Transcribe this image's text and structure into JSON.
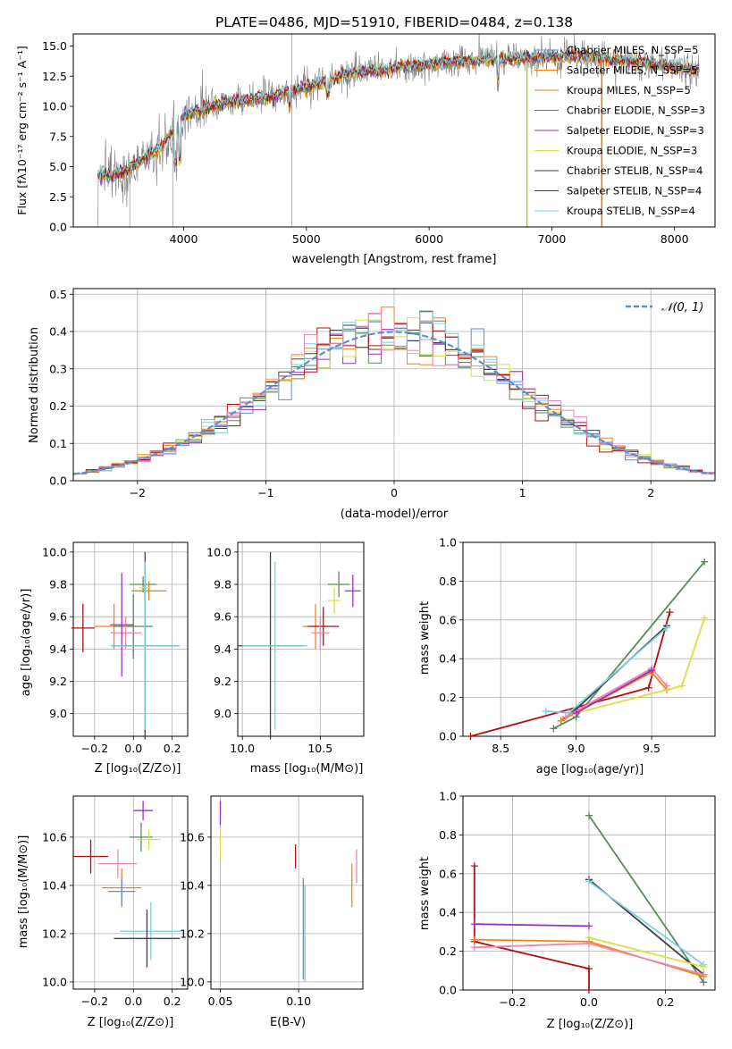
{
  "chart_data": [
    {
      "type": "line",
      "title": "PLATE=0486, MJD=51910, FIBERID=0484, z=0.138",
      "xlabel": "wavelength [Angstrom, rest frame]",
      "ylabel": "Flux [fλ10⁻¹⁷ erg cm⁻² s⁻¹ A⁻¹]",
      "xlim": [
        3100,
        8330
      ],
      "ylim": [
        0,
        16
      ],
      "xticks": [
        4000,
        5000,
        6000,
        7000,
        8000
      ],
      "yticks": [
        0.0,
        2.5,
        5.0,
        7.5,
        10.0,
        12.5,
        15.0
      ],
      "legend_position": "upper-right",
      "series": [
        {
          "name": "Chabrier MILES, N_SSP=5",
          "color": "#5b8fd1"
        },
        {
          "name": "Salpeter MILES, N_SSP=5",
          "color": "#ff7f0e"
        },
        {
          "name": "Kroupa MILES, N_SSP=5",
          "color": "#d9821a"
        },
        {
          "name": "Chabrier ELODIE, N_SSP=3",
          "color": "#5a8a5a"
        },
        {
          "name": "Salpeter ELODIE, N_SSP=3",
          "color": "#9b30c0"
        },
        {
          "name": "Kroupa ELODIE, N_SSP=3",
          "color": "#d8e040"
        },
        {
          "name": "Chabrier STELIB, N_SSP=4",
          "color": "#404040"
        },
        {
          "name": "Salpeter STELIB, N_SSP=4",
          "color": "#b01010"
        },
        {
          "name": "Kroupa STELIB, N_SSP=4",
          "color": "#7ed0e0"
        }
      ],
      "data_spectrum": {
        "name": "data",
        "color": "#7f7f7f"
      },
      "continuum": {
        "x": [
          3300,
          3500,
          3800,
          4000,
          4300,
          4700,
          5000,
          5300,
          5600,
          6000,
          6400,
          6800,
          7200,
          7600,
          8000,
          8200
        ],
        "y": [
          4.2,
          4.5,
          6.5,
          9.2,
          10.2,
          10.8,
          11.6,
          12.6,
          13.0,
          13.5,
          13.8,
          14.0,
          14.2,
          13.8,
          13.3,
          13.0
        ]
      }
    },
    {
      "type": "step",
      "xlabel": "(data-model)/error",
      "ylabel": "Normed distribution",
      "xlim": [
        -2.5,
        2.5
      ],
      "ylim": [
        0,
        0.515
      ],
      "xticks": [
        -2,
        -1,
        0,
        1,
        2
      ],
      "yticks": [
        0.0,
        0.1,
        0.2,
        0.3,
        0.4,
        0.5
      ],
      "grid": true,
      "legend": {
        "label": "𝒩(0, 1)",
        "position": "upper-right",
        "style": "dashed",
        "color": "#5b8fd1"
      },
      "bin_width": 0.1
    },
    {
      "type": "errorbar",
      "xlabel": "Z [log₁₀(Z/Z⊙)]",
      "ylabel": "age  [log₁₀(age/yr)]",
      "xlim": [
        -0.31,
        0.28
      ],
      "ylim": [
        8.86,
        10.06
      ],
      "xticks": [
        "−0.2",
        "0.0",
        "0.2"
      ],
      "xtick_values": [
        -0.2,
        0.0,
        0.2
      ],
      "yticks": [
        "9.0",
        "9.2",
        "9.4",
        "9.6",
        "9.8",
        "10.0"
      ],
      "ytick_values": [
        9.0,
        9.2,
        9.4,
        9.6,
        9.8,
        10.0
      ],
      "points": [
        {
          "x": -0.26,
          "xerr": 0.06,
          "y": 9.53,
          "yerr": 0.15,
          "color": "#b01010"
        },
        {
          "x": -0.1,
          "xerr": 0.1,
          "y": 9.54,
          "yerr": 0.14,
          "color": "#ff7f0e"
        },
        {
          "x": 0.0,
          "xerr": 0.1,
          "y": 9.54,
          "yerr": 0.2,
          "color": "#5a8a5a"
        },
        {
          "x": -0.04,
          "xerr": 0.08,
          "y": 9.5,
          "yerr": 0.1,
          "color": "#e88ab0"
        },
        {
          "x": -0.06,
          "xerr": 0.06,
          "y": 9.55,
          "yerr": 0.32,
          "color": "#9b30c0"
        },
        {
          "x": 0.05,
          "xerr": 0.07,
          "y": 9.8,
          "yerr": 0.05,
          "color": "#5a8a5a"
        },
        {
          "x": 0.08,
          "xerr": 0.09,
          "y": 9.76,
          "yerr": 0.06,
          "color": "#d9821a"
        },
        {
          "x": 0.06,
          "xerr": 0.03,
          "y": 9.78,
          "yerr": 0.12,
          "color": "#d8e040"
        },
        {
          "x": 0.06,
          "xerr": 0.17,
          "y": 9.42,
          "yerr": 0.58,
          "color": "#404040"
        },
        {
          "x": 0.06,
          "xerr": 0.18,
          "y": 9.42,
          "yerr": 0.52,
          "color": "#7ed0e0"
        }
      ]
    },
    {
      "type": "errorbar",
      "xlabel": "mass [log₁₀(M/M⊙)]",
      "xlim": [
        9.97,
        10.78
      ],
      "ylim": [
        8.86,
        10.06
      ],
      "xticks": [
        "10.0",
        "10.5"
      ],
      "xtick_values": [
        10.0,
        10.5
      ],
      "yticks": [
        "9.0",
        "9.2",
        "9.4",
        "9.6",
        "9.8",
        "10.0"
      ],
      "ytick_values": [
        9.0,
        9.2,
        9.4,
        9.6,
        9.8,
        10.0
      ],
      "points": [
        {
          "x": 10.18,
          "xerr": 0.21,
          "y": 9.42,
          "yerr": 0.58,
          "color": "#404040"
        },
        {
          "x": 10.21,
          "xerr": 0.21,
          "y": 9.42,
          "yerr": 0.52,
          "color": "#7ed0e0"
        },
        {
          "x": 10.47,
          "xerr": 0.08,
          "y": 9.54,
          "yerr": 0.14,
          "color": "#ff7f0e"
        },
        {
          "x": 10.52,
          "xerr": 0.1,
          "y": 9.54,
          "yerr": 0.12,
          "color": "#b01010"
        },
        {
          "x": 10.5,
          "xerr": 0.06,
          "y": 9.5,
          "yerr": 0.1,
          "color": "#e88ab0"
        },
        {
          "x": 10.62,
          "xerr": 0.07,
          "y": 9.8,
          "yerr": 0.08,
          "color": "#5a8a5a"
        },
        {
          "x": 10.59,
          "xerr": 0.04,
          "y": 9.7,
          "yerr": 0.08,
          "color": "#d8e040"
        },
        {
          "x": 10.71,
          "xerr": 0.05,
          "y": 9.76,
          "yerr": 0.1,
          "color": "#9b30c0"
        }
      ]
    },
    {
      "type": "line",
      "xlabel": "age  [log₁₀(age/yr)]",
      "ylabel": "mass weight",
      "xlim": [
        8.25,
        9.92
      ],
      "ylim": [
        0,
        1.0
      ],
      "xticks": [
        "8.5",
        "9.0",
        "9.5"
      ],
      "xtick_values": [
        8.5,
        9.0,
        9.5
      ],
      "yticks": [
        "0.0",
        "0.2",
        "0.4",
        "0.6",
        "0.8",
        "1.0"
      ],
      "ytick_values": [
        0.0,
        0.2,
        0.4,
        0.6,
        0.8,
        1.0
      ],
      "grid": true,
      "series": [
        {
          "color": "#5a8a5a",
          "x": [
            8.85,
            9.0,
            9.85
          ],
          "y": [
            0.04,
            0.1,
            0.9
          ]
        },
        {
          "color": "#b01010",
          "x": [
            8.3,
            9.48,
            9.62
          ],
          "y": [
            0.0,
            0.25,
            0.64
          ]
        },
        {
          "color": "#404040",
          "x": [
            8.9,
            9.0,
            9.6
          ],
          "y": [
            0.08,
            0.14,
            0.57
          ]
        },
        {
          "color": "#7ed0e0",
          "x": [
            8.8,
            8.95,
            9.6
          ],
          "y": [
            0.13,
            0.12,
            0.56
          ]
        },
        {
          "color": "#ff7f0e",
          "x": [
            8.9,
            9.5,
            9.6
          ],
          "y": [
            0.08,
            0.33,
            0.24
          ]
        },
        {
          "color": "#e88ab0",
          "x": [
            8.93,
            9.5,
            9.6
          ],
          "y": [
            0.1,
            0.35,
            0.26
          ]
        },
        {
          "color": "#d8e040",
          "x": [
            9.0,
            9.7,
            9.85
          ],
          "y": [
            0.12,
            0.26,
            0.61
          ]
        },
        {
          "color": "#9b30c0",
          "x": [
            9.0,
            9.5
          ],
          "y": [
            0.12,
            0.34
          ]
        }
      ]
    },
    {
      "type": "errorbar",
      "xlabel": "Z [log₁₀(Z/Z⊙)]",
      "ylabel": "mass [log₁₀(M/M⊙)]",
      "xlim": [
        -0.31,
        0.28
      ],
      "ylim": [
        9.97,
        10.77
      ],
      "xticks": [
        "−0.2",
        "0.0",
        "0.2"
      ],
      "xtick_values": [
        -0.2,
        0.0,
        0.2
      ],
      "yticks": [
        "10.0",
        "10.2",
        "10.4",
        "10.6"
      ],
      "ytick_values": [
        10.0,
        10.2,
        10.4,
        10.6
      ],
      "points": [
        {
          "x": -0.22,
          "xerr": 0.09,
          "y": 10.52,
          "yerr": 0.07,
          "color": "#b01010"
        },
        {
          "x": -0.08,
          "xerr": 0.1,
          "y": 10.49,
          "yerr": 0.06,
          "color": "#e88ab0"
        },
        {
          "x": -0.06,
          "xerr": 0.1,
          "y": 10.39,
          "yerr": 0.08,
          "color": "#ff7f0e"
        },
        {
          "x": -0.06,
          "xerr": 0.07,
          "y": 10.375,
          "yerr": 0.06,
          "color": "#5b8fd1"
        },
        {
          "x": 0.04,
          "xerr": 0.06,
          "y": 10.6,
          "yerr": 0.06,
          "color": "#5a8a5a"
        },
        {
          "x": 0.05,
          "xerr": 0.05,
          "y": 10.71,
          "yerr": 0.04,
          "color": "#9b30c0"
        },
        {
          "x": 0.08,
          "xerr": 0.06,
          "y": 10.59,
          "yerr": 0.04,
          "color": "#d8e040"
        },
        {
          "x": 0.09,
          "xerr": 0.16,
          "y": 10.21,
          "yerr": 0.12,
          "color": "#7ed0e0"
        },
        {
          "x": 0.07,
          "xerr": 0.17,
          "y": 10.18,
          "yerr": 0.12,
          "color": "#404040"
        }
      ]
    },
    {
      "type": "errorbar",
      "xlabel": "E(B-V)",
      "xlim": [
        0.044,
        0.141
      ],
      "ylim": [
        9.97,
        10.77
      ],
      "xticks": [
        "0.05",
        "0.10"
      ],
      "xtick_values": [
        0.05,
        0.1
      ],
      "yticks": [
        "10.0",
        "10.2",
        "10.4",
        "10.6"
      ],
      "ytick_values": [
        10.0,
        10.2,
        10.4,
        10.6
      ],
      "points": [
        {
          "x": 0.05,
          "y": 10.7,
          "yerr": 0.05,
          "color": "#9b30c0"
        },
        {
          "x": 0.05,
          "y": 10.57,
          "yerr": 0.06,
          "color": "#d8e040"
        },
        {
          "x": 0.098,
          "y": 10.52,
          "yerr": 0.05,
          "color": "#b01010"
        },
        {
          "x": 0.103,
          "y": 10.22,
          "yerr": 0.21,
          "color": "#5b8fd1"
        },
        {
          "x": 0.104,
          "y": 10.2,
          "yerr": 0.2,
          "color": "#7ed0e0"
        },
        {
          "x": 0.134,
          "y": 10.4,
          "yerr": 0.09,
          "color": "#ff7f0e"
        },
        {
          "x": 0.137,
          "y": 10.48,
          "yerr": 0.07,
          "color": "#e88ab0"
        }
      ]
    },
    {
      "type": "line",
      "xlabel": "Z [log₁₀(Z/Z⊙)]",
      "ylabel": "mass weight",
      "xlim": [
        -0.33,
        0.33
      ],
      "ylim": [
        0,
        1.0
      ],
      "xticks": [
        "−0.2",
        "0.0",
        "0.2"
      ],
      "xtick_values": [
        -0.2,
        0.0,
        0.2
      ],
      "yticks": [
        "0.0",
        "0.2",
        "0.4",
        "0.6",
        "0.8",
        "1.0"
      ],
      "ytick_values": [
        0.0,
        0.2,
        0.4,
        0.6,
        0.8,
        1.0
      ],
      "grid": true,
      "series": [
        {
          "color": "#5a8a5a",
          "x": [
            0.0,
            0.3
          ],
          "y": [
            0.9,
            0.04
          ]
        },
        {
          "color": "#404040",
          "x": [
            0.0,
            0.3
          ],
          "y": [
            0.57,
            0.08
          ]
        },
        {
          "color": "#7ed0e0",
          "x": [
            0.0,
            0.3
          ],
          "y": [
            0.56,
            0.13
          ]
        },
        {
          "color": "#d8e040",
          "x": [
            0.0,
            0.3
          ],
          "y": [
            0.27,
            0.12
          ]
        },
        {
          "color": "#b01010",
          "x": [
            -0.3,
            -0.3,
            0.0,
            0.0
          ],
          "y": [
            0.64,
            0.25,
            0.11,
            0.0
          ]
        },
        {
          "color": "#ff7f0e",
          "x": [
            -0.3,
            0.0,
            0.3
          ],
          "y": [
            0.26,
            0.25,
            0.07
          ]
        },
        {
          "color": "#e88ab0",
          "x": [
            -0.3,
            0.0,
            0.3
          ],
          "y": [
            0.22,
            0.24,
            0.08
          ]
        },
        {
          "color": "#9b30c0",
          "x": [
            -0.3,
            0.0
          ],
          "y": [
            0.34,
            0.33
          ]
        }
      ]
    }
  ]
}
